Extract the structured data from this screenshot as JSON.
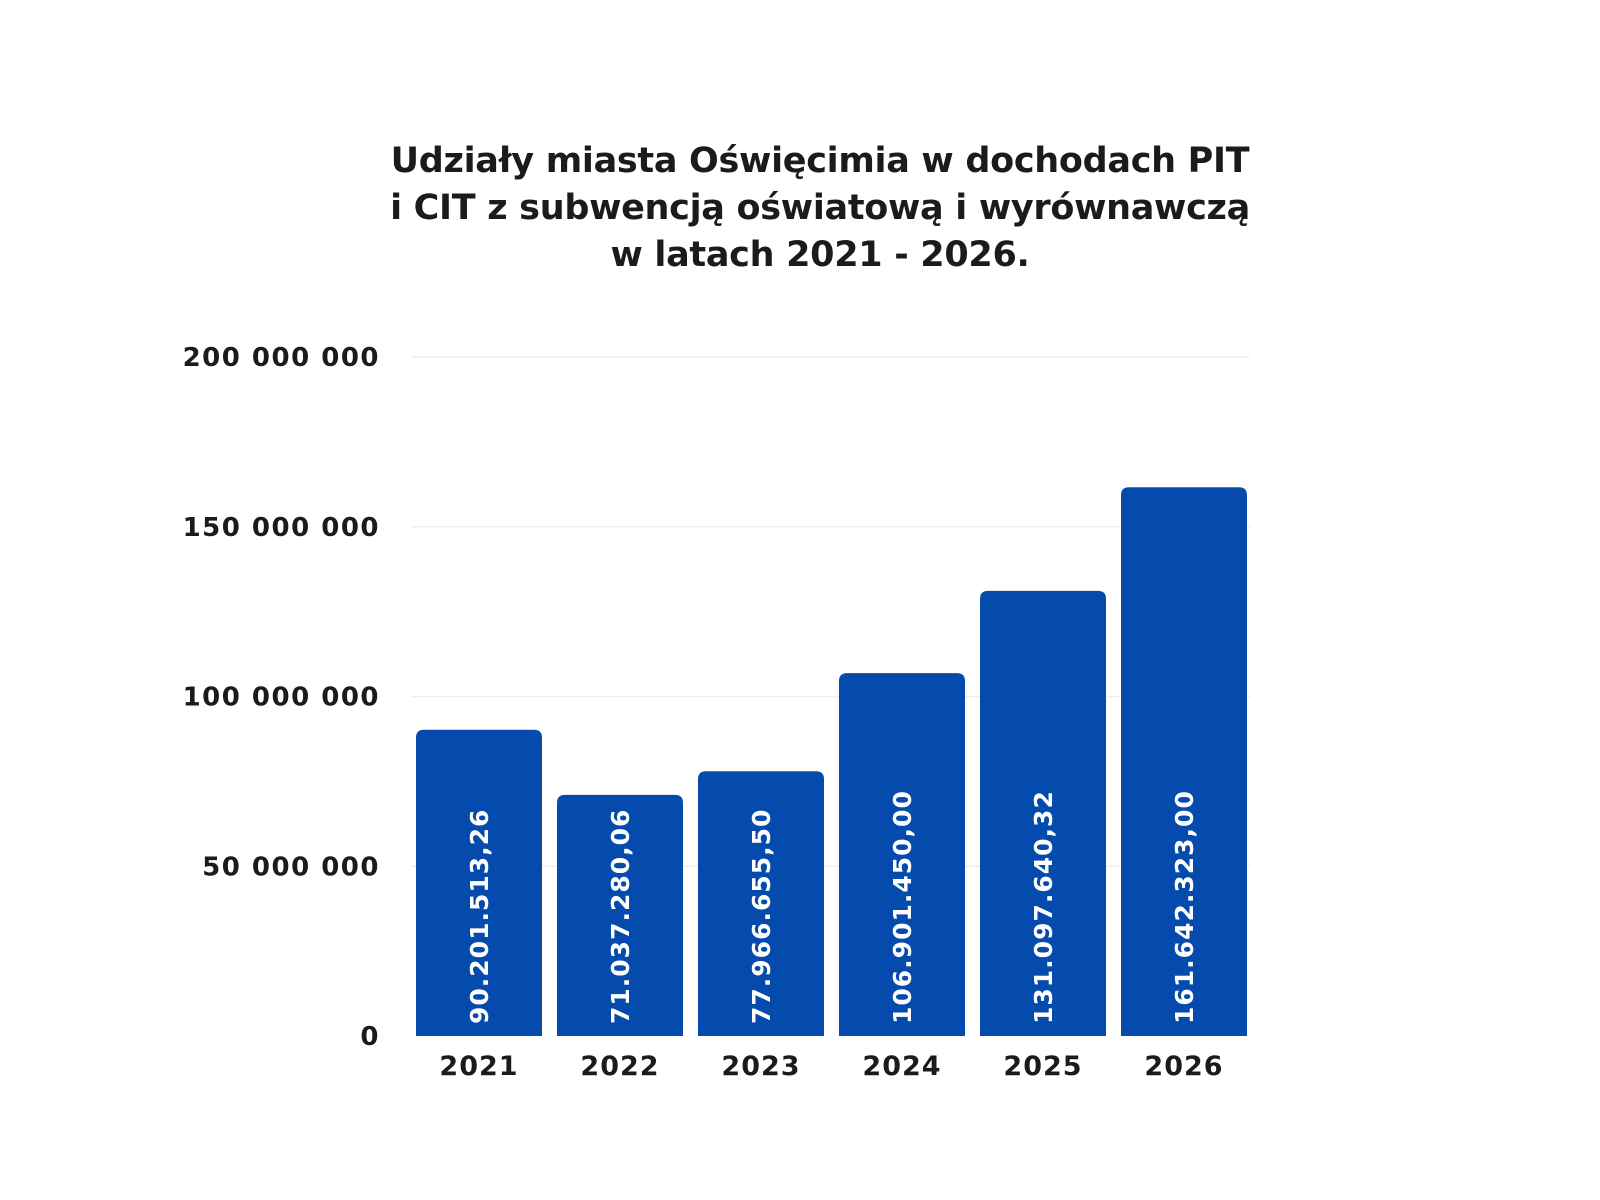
{
  "chart_data": {
    "type": "bar",
    "title_lines": [
      "Udziały miasta Oświęcimia w dochodach PIT",
      "i CIT z subwencją oświatową i wyrównawczą",
      "w latach 2021 - 2026."
    ],
    "categories": [
      "2021",
      "2022",
      "2023",
      "2024",
      "2025",
      "2026"
    ],
    "values": [
      90201513.26,
      71037280.06,
      77966655.5,
      106901450.0,
      131097640.32,
      161642323.0
    ],
    "data_labels": [
      "90.201.513,26",
      "71.037.280,06",
      "77.966.655,50",
      "106.901.450,00",
      "131.097.640,32",
      "161.642.323,00"
    ],
    "yticks": [
      0,
      50000000,
      100000000,
      150000000,
      200000000
    ],
    "ytick_labels": [
      "0",
      "50 000 000",
      "100 000 000",
      "150 000 000",
      "200 000 000"
    ],
    "ylim": [
      0,
      200000000
    ],
    "grid": true,
    "legend": "none",
    "colors": {
      "bar": "#054aad",
      "gridline": "#eeeeee",
      "text": "#1b1b1b",
      "label": "#ffffff"
    }
  }
}
